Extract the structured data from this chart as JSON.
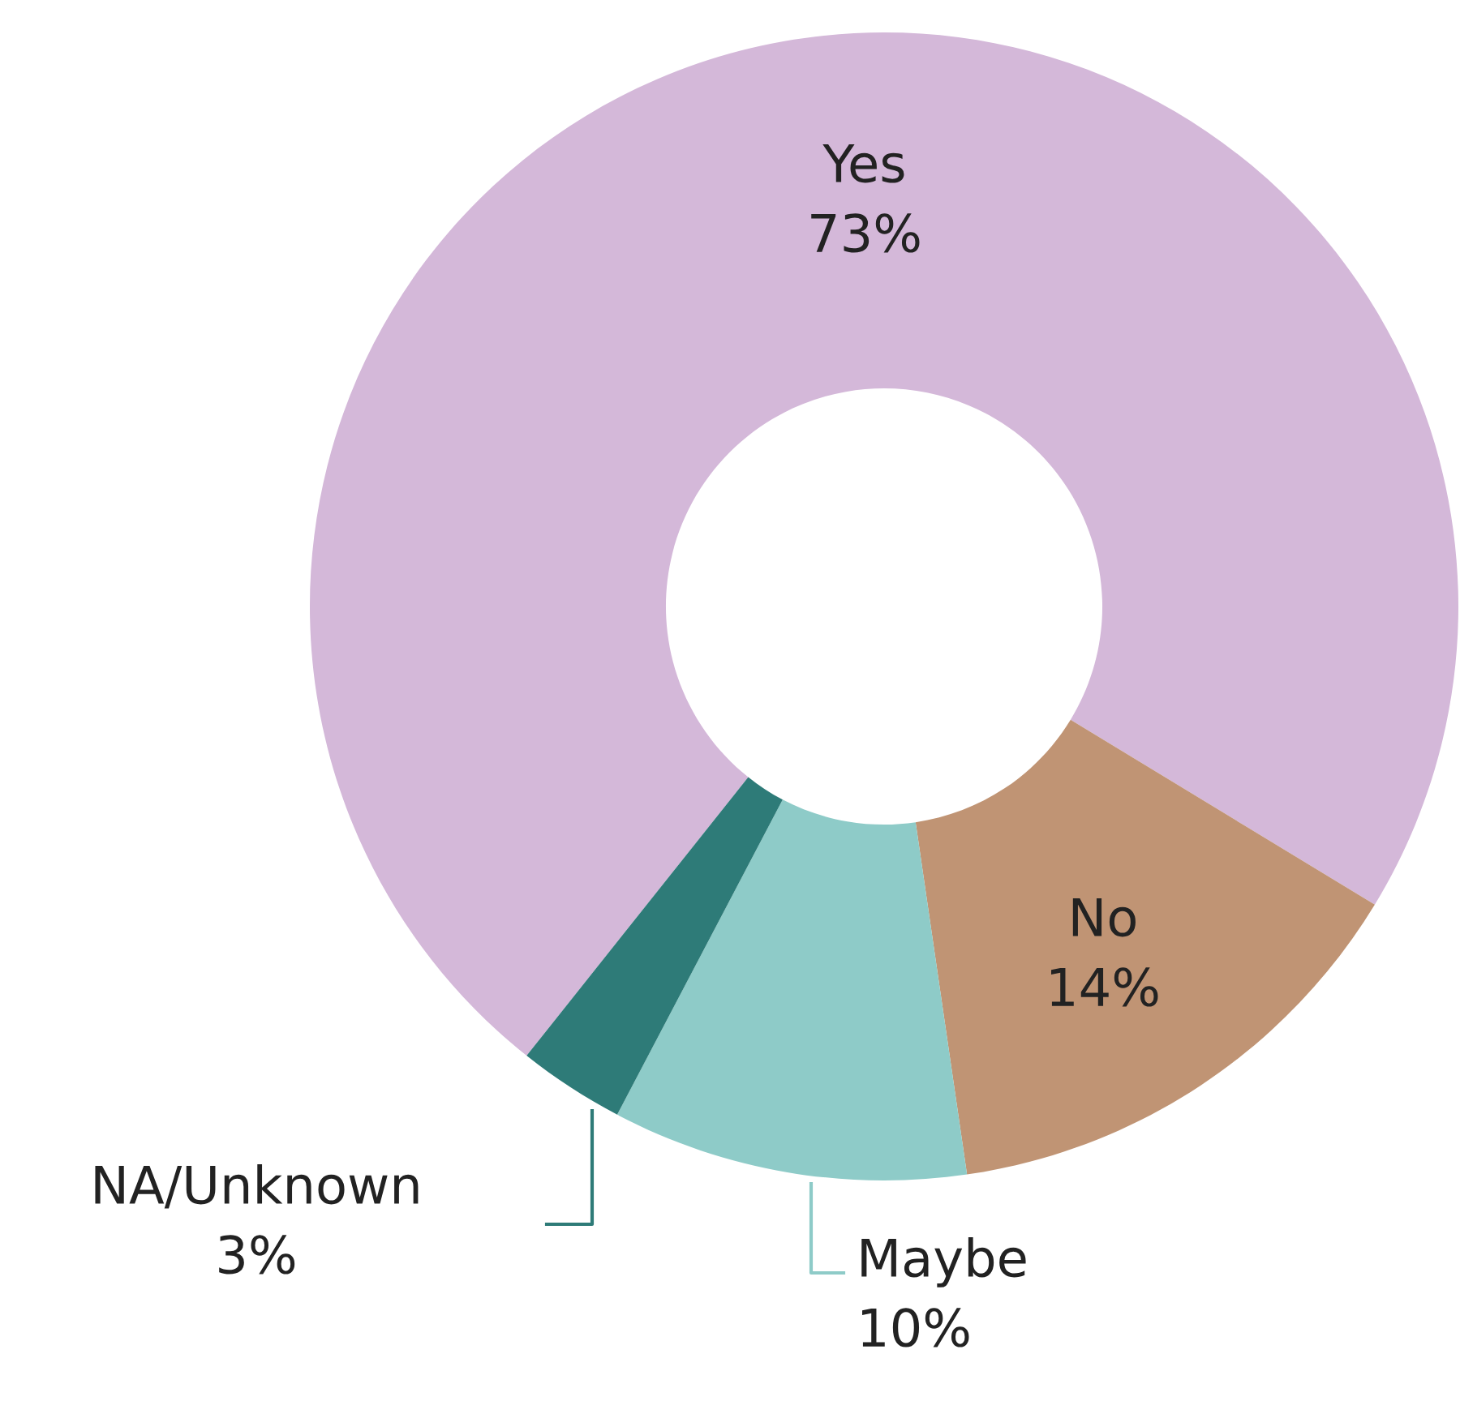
{
  "chart_data": {
    "type": "donut",
    "categories": [
      "Yes",
      "No",
      "Maybe",
      "NA/Unknown"
    ],
    "values": [
      73,
      14,
      10,
      3
    ],
    "value_labels": [
      "73%",
      "14%",
      "10%",
      "3%"
    ],
    "colors": [
      "#d4b8d9",
      "#c09474",
      "#8ecbc8",
      "#2e7b78"
    ],
    "legend": false
  }
}
